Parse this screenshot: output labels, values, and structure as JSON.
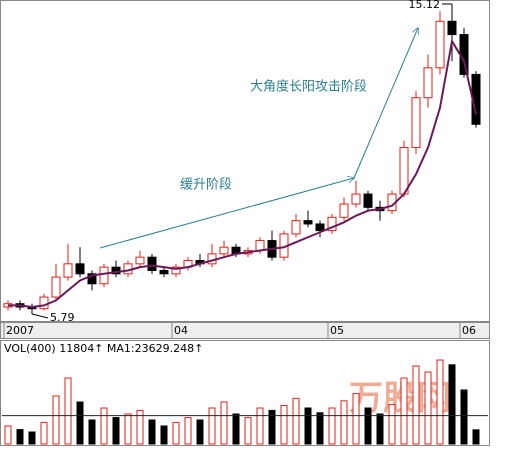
{
  "chart_data": {
    "type": "candlestick",
    "annotations": [
      "缓升阶段",
      "大角度长阳攻击阶段"
    ],
    "high_label": 15.12,
    "low_label": 5.79,
    "dates": [
      "2007",
      null,
      null,
      null,
      null,
      null,
      null,
      null,
      null,
      null,
      null,
      null,
      null,
      null,
      "04",
      null,
      null,
      null,
      null,
      null,
      null,
      null,
      null,
      null,
      null,
      null,
      null,
      "05",
      null,
      null,
      null,
      null,
      null,
      null,
      null,
      null,
      null,
      null,
      "06",
      null
    ],
    "open": [
      6.0,
      6.1,
      6.0,
      5.95,
      6.3,
      6.9,
      7.3,
      7.0,
      6.7,
      7.2,
      7.0,
      7.3,
      7.5,
      7.1,
      7.0,
      7.2,
      7.4,
      7.3,
      7.6,
      7.8,
      7.6,
      7.7,
      8.0,
      7.5,
      8.2,
      8.6,
      8.5,
      8.3,
      8.7,
      9.1,
      9.4,
      9.0,
      8.9,
      9.4,
      10.8,
      12.3,
      13.2,
      14.6,
      14.2,
      13.0
    ],
    "close": [
      6.1,
      6.0,
      5.95,
      6.3,
      6.9,
      7.3,
      7.0,
      6.7,
      7.2,
      7.0,
      7.3,
      7.5,
      7.1,
      7.0,
      7.2,
      7.4,
      7.3,
      7.6,
      7.8,
      7.6,
      7.7,
      8.0,
      7.5,
      8.2,
      8.6,
      8.5,
      8.3,
      8.7,
      9.1,
      9.4,
      9.0,
      8.9,
      9.4,
      10.8,
      12.3,
      13.2,
      14.6,
      14.2,
      13.0,
      11.5
    ],
    "high": [
      6.2,
      6.2,
      6.1,
      6.4,
      7.3,
      7.9,
      7.8,
      7.1,
      7.3,
      7.4,
      7.4,
      7.7,
      7.6,
      7.2,
      7.3,
      7.5,
      7.6,
      7.9,
      8.0,
      7.9,
      7.8,
      8.1,
      8.3,
      8.3,
      8.8,
      8.9,
      8.6,
      8.8,
      9.3,
      9.8,
      9.5,
      9.2,
      9.5,
      11.0,
      12.5,
      13.6,
      14.9,
      15.12,
      14.4,
      13.1
    ],
    "low": [
      5.9,
      5.9,
      5.79,
      5.9,
      6.2,
      6.8,
      6.9,
      6.5,
      6.6,
      6.9,
      6.9,
      7.2,
      7.0,
      6.9,
      6.9,
      7.1,
      7.2,
      7.2,
      7.5,
      7.5,
      7.5,
      7.6,
      7.4,
      7.4,
      8.1,
      8.4,
      8.1,
      8.2,
      8.6,
      9.0,
      8.9,
      8.6,
      8.8,
      9.3,
      10.6,
      12.0,
      13.0,
      13.4,
      12.9,
      11.4
    ],
    "ma": [
      6.05,
      6.05,
      6.0,
      6.05,
      6.2,
      6.5,
      6.8,
      6.95,
      7.0,
      7.05,
      7.1,
      7.2,
      7.25,
      7.2,
      7.15,
      7.2,
      7.3,
      7.4,
      7.5,
      7.6,
      7.65,
      7.7,
      7.75,
      7.8,
      7.95,
      8.1,
      8.25,
      8.4,
      8.55,
      8.75,
      8.9,
      8.95,
      9.05,
      9.4,
      10.0,
      10.8,
      12.0,
      14.0,
      13.4,
      11.8
    ],
    "up_color": "#e0201a",
    "down_color": "#000000",
    "ma_color": "#6a1a5a",
    "volume_header": "VOL(400) 11804↑ MA1:23629.248↑",
    "volume": [
      15000,
      12000,
      10000,
      18000,
      40000,
      55000,
      35000,
      20000,
      30000,
      22000,
      25000,
      28000,
      20000,
      15000,
      18000,
      22000,
      20000,
      30000,
      35000,
      25000,
      22000,
      30000,
      28000,
      32000,
      38000,
      30000,
      26000,
      30000,
      36000,
      42000,
      30000,
      25000,
      33000,
      55000,
      65000,
      60000,
      70000,
      66000,
      45000,
      11804
    ],
    "volume_ma": 23629.248,
    "watermark": "万股网"
  }
}
